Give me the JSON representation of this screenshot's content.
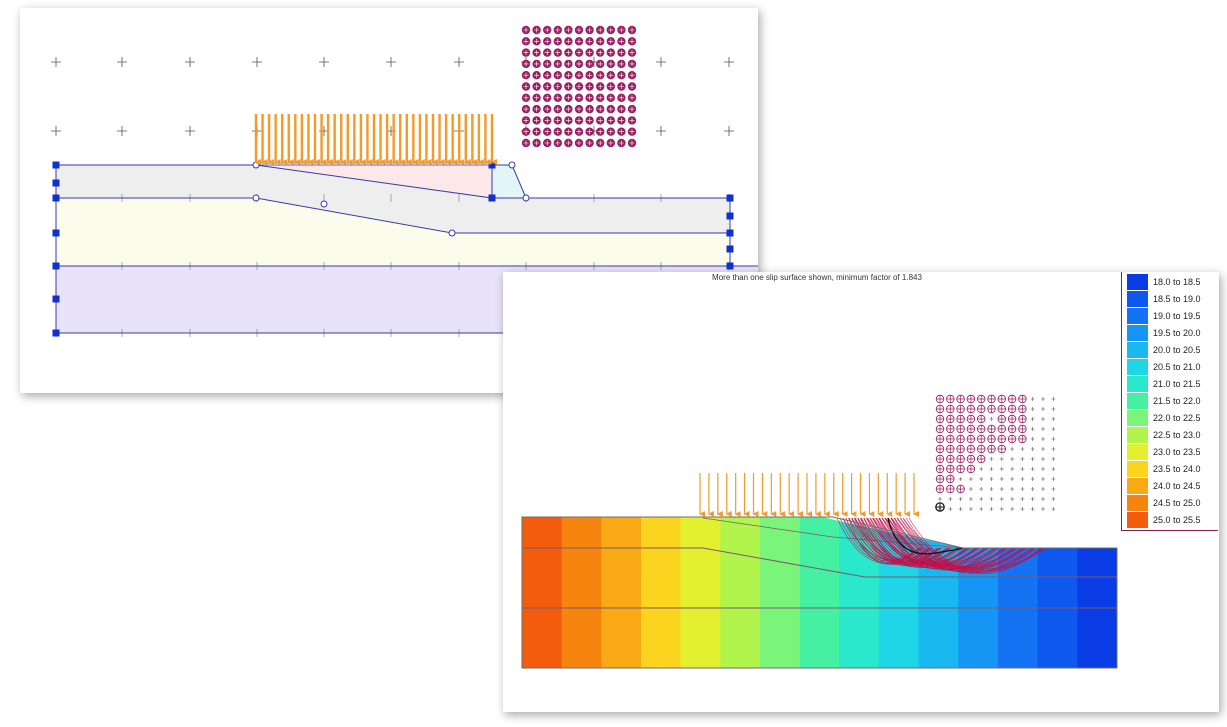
{
  "model_view": {
    "name": "slope-model-geometry"
  },
  "results_view": {
    "header_text": "More than one slip surface shown, minimum factor of 1.843",
    "legend": [
      {
        "label": "18.0 to 18.5",
        "color": "#0a3ce6"
      },
      {
        "label": "18.5 to 19.0",
        "color": "#0f58ee"
      },
      {
        "label": "19.0 to 19.5",
        "color": "#1473f2"
      },
      {
        "label": "19.5 to 20.0",
        "color": "#1696f4"
      },
      {
        "label": "20.0 to 20.5",
        "color": "#1ab8f0"
      },
      {
        "label": "20.5 to 21.0",
        "color": "#1ed6e6"
      },
      {
        "label": "21.0 to 21.5",
        "color": "#2ae8cc"
      },
      {
        "label": "21.5 to 22.0",
        "color": "#46f0a2"
      },
      {
        "label": "22.0 to 22.5",
        "color": "#7af57a"
      },
      {
        "label": "22.5 to 23.0",
        "color": "#b0f44c"
      },
      {
        "label": "23.0 to 23.5",
        "color": "#e2f030"
      },
      {
        "label": "23.5 to 24.0",
        "color": "#fad41e"
      },
      {
        "label": "24.0 to 24.5",
        "color": "#f9a914"
      },
      {
        "label": "24.5 to 25.0",
        "color": "#f68510"
      },
      {
        "label": "25.0 to 25.5",
        "color": "#f25c0c"
      }
    ]
  },
  "colors": {
    "boundary": "#3a3aa8",
    "vertex": "#1030d0",
    "load_arrow": "#f29a2a",
    "grid_center": "#9a1f62",
    "slip_surface": "#c0104a"
  }
}
